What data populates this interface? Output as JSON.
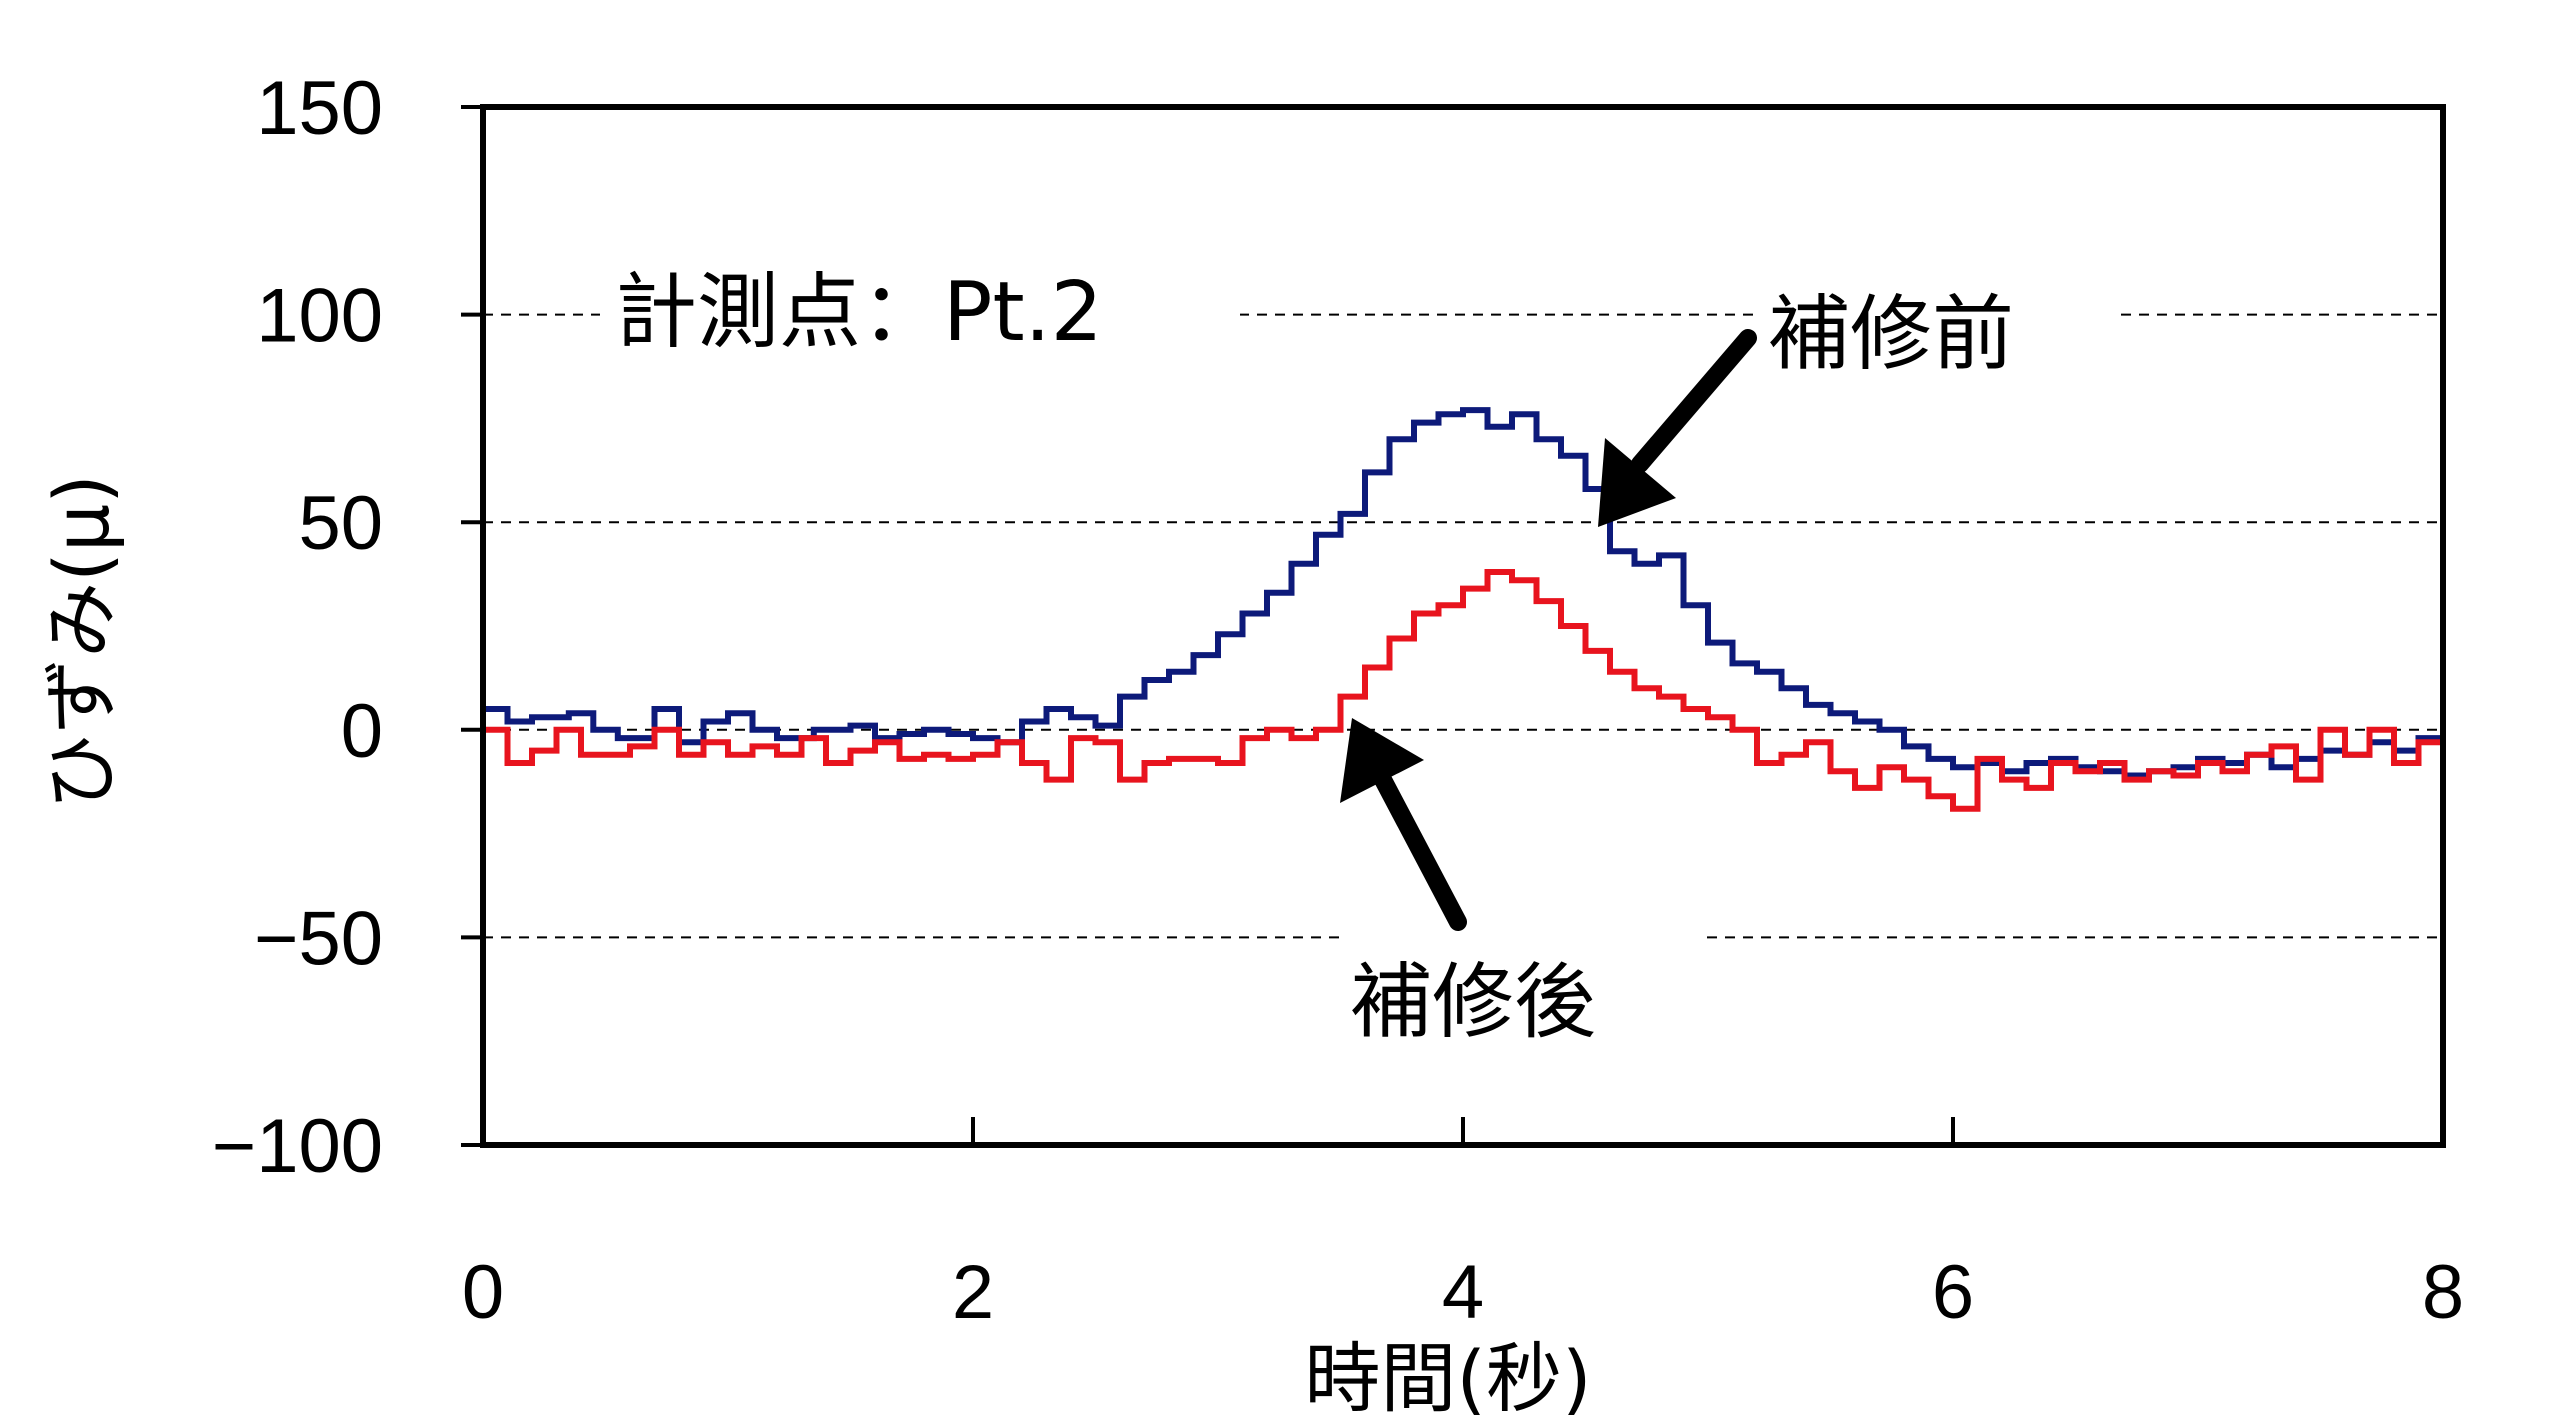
{
  "chart_data": {
    "type": "line",
    "xlabel": "時間(秒)",
    "ylabel": "ひずみ(μ)",
    "xlim": [
      0,
      8
    ],
    "ylim": [
      -100,
      150
    ],
    "xticks": [
      "0",
      "2",
      "4",
      "6",
      "8"
    ],
    "yticks": [
      "150",
      "100",
      "50",
      "0",
      "−50",
      "−100"
    ],
    "xtick_values": [
      0,
      2,
      4,
      6,
      8
    ],
    "ytick_values": [
      150,
      100,
      50,
      0,
      -50,
      -100
    ],
    "grid": "horizontal dashed",
    "annotations": {
      "measurement_point": "計測点：Pt.2",
      "before_repair": "補修前",
      "after_repair": "補修後"
    },
    "series": [
      {
        "name": "補修前",
        "color": "#0d1a7a",
        "x": [
          0,
          0.1,
          0.2,
          0.35,
          0.45,
          0.55,
          0.7,
          0.8,
          0.9,
          1.0,
          1.1,
          1.2,
          1.35,
          1.5,
          1.6,
          1.7,
          1.8,
          1.9,
          2.0,
          2.1,
          2.2,
          2.3,
          2.4,
          2.5,
          2.6,
          2.7,
          2.8,
          2.9,
          3.0,
          3.1,
          3.2,
          3.3,
          3.4,
          3.5,
          3.6,
          3.7,
          3.8,
          3.9,
          4.0,
          4.1,
          4.2,
          4.3,
          4.4,
          4.5,
          4.6,
          4.7,
          4.8,
          4.9,
          5.0,
          5.1,
          5.2,
          5.3,
          5.4,
          5.5,
          5.6,
          5.7,
          5.8,
          5.9,
          6.0,
          6.1,
          6.2,
          6.3,
          6.4,
          6.5,
          6.6,
          6.7,
          6.8,
          6.9,
          7.0,
          7.1,
          7.2,
          7.3,
          7.4,
          7.5,
          7.6,
          7.7,
          7.8,
          7.9,
          8.0
        ],
        "y": [
          5,
          2,
          3,
          4,
          0,
          -2,
          5,
          -3,
          2,
          4,
          0,
          -2,
          0,
          1,
          -2,
          -1,
          0,
          -1,
          -2,
          -3,
          2,
          5,
          3,
          1,
          8,
          12,
          14,
          18,
          23,
          28,
          33,
          40,
          47,
          52,
          62,
          70,
          74,
          76,
          77,
          73,
          76,
          70,
          66,
          58,
          43,
          40,
          42,
          30,
          21,
          16,
          14,
          10,
          6,
          4,
          2,
          0,
          -4,
          -7,
          -9,
          -8,
          -10,
          -8,
          -7,
          -9,
          -10,
          -11,
          -10,
          -9,
          -7,
          -8,
          -6,
          -9,
          -7,
          -5,
          -6,
          -3,
          -5,
          -2,
          0
        ]
      },
      {
        "name": "補修後",
        "color": "#e8141e",
        "x": [
          0,
          0.1,
          0.2,
          0.3,
          0.4,
          0.5,
          0.6,
          0.7,
          0.8,
          0.9,
          1.0,
          1.1,
          1.2,
          1.3,
          1.4,
          1.5,
          1.6,
          1.7,
          1.8,
          1.9,
          2.0,
          2.1,
          2.2,
          2.3,
          2.4,
          2.5,
          2.6,
          2.7,
          2.8,
          2.9,
          3.0,
          3.1,
          3.2,
          3.3,
          3.4,
          3.5,
          3.6,
          3.7,
          3.8,
          3.9,
          4.0,
          4.1,
          4.2,
          4.3,
          4.4,
          4.5,
          4.6,
          4.7,
          4.8,
          4.9,
          5.0,
          5.1,
          5.2,
          5.3,
          5.4,
          5.5,
          5.6,
          5.7,
          5.8,
          5.9,
          6.0,
          6.1,
          6.2,
          6.3,
          6.4,
          6.5,
          6.6,
          6.7,
          6.8,
          6.9,
          7.0,
          7.1,
          7.2,
          7.3,
          7.4,
          7.5,
          7.6,
          7.7,
          7.8,
          7.9,
          8.0
        ],
        "y": [
          0,
          -8,
          -5,
          0,
          -6,
          -6,
          -4,
          0,
          -6,
          -3,
          -6,
          -4,
          -6,
          -2,
          -8,
          -5,
          -3,
          -7,
          -6,
          -7,
          -6,
          -3,
          -8,
          -12,
          -2,
          -3,
          -12,
          -8,
          -7,
          -7,
          -8,
          -2,
          0,
          -2,
          0,
          8,
          15,
          22,
          28,
          30,
          34,
          38,
          36,
          31,
          25,
          19,
          14,
          10,
          8,
          5,
          3,
          0,
          -8,
          -6,
          -3,
          -10,
          -14,
          -9,
          -12,
          -16,
          -19,
          -7,
          -12,
          -14,
          -8,
          -10,
          -8,
          -12,
          -10,
          -11,
          -8,
          -10,
          -6,
          -4,
          -12,
          0,
          -6,
          0,
          -8,
          -3,
          0
        ]
      }
    ]
  }
}
